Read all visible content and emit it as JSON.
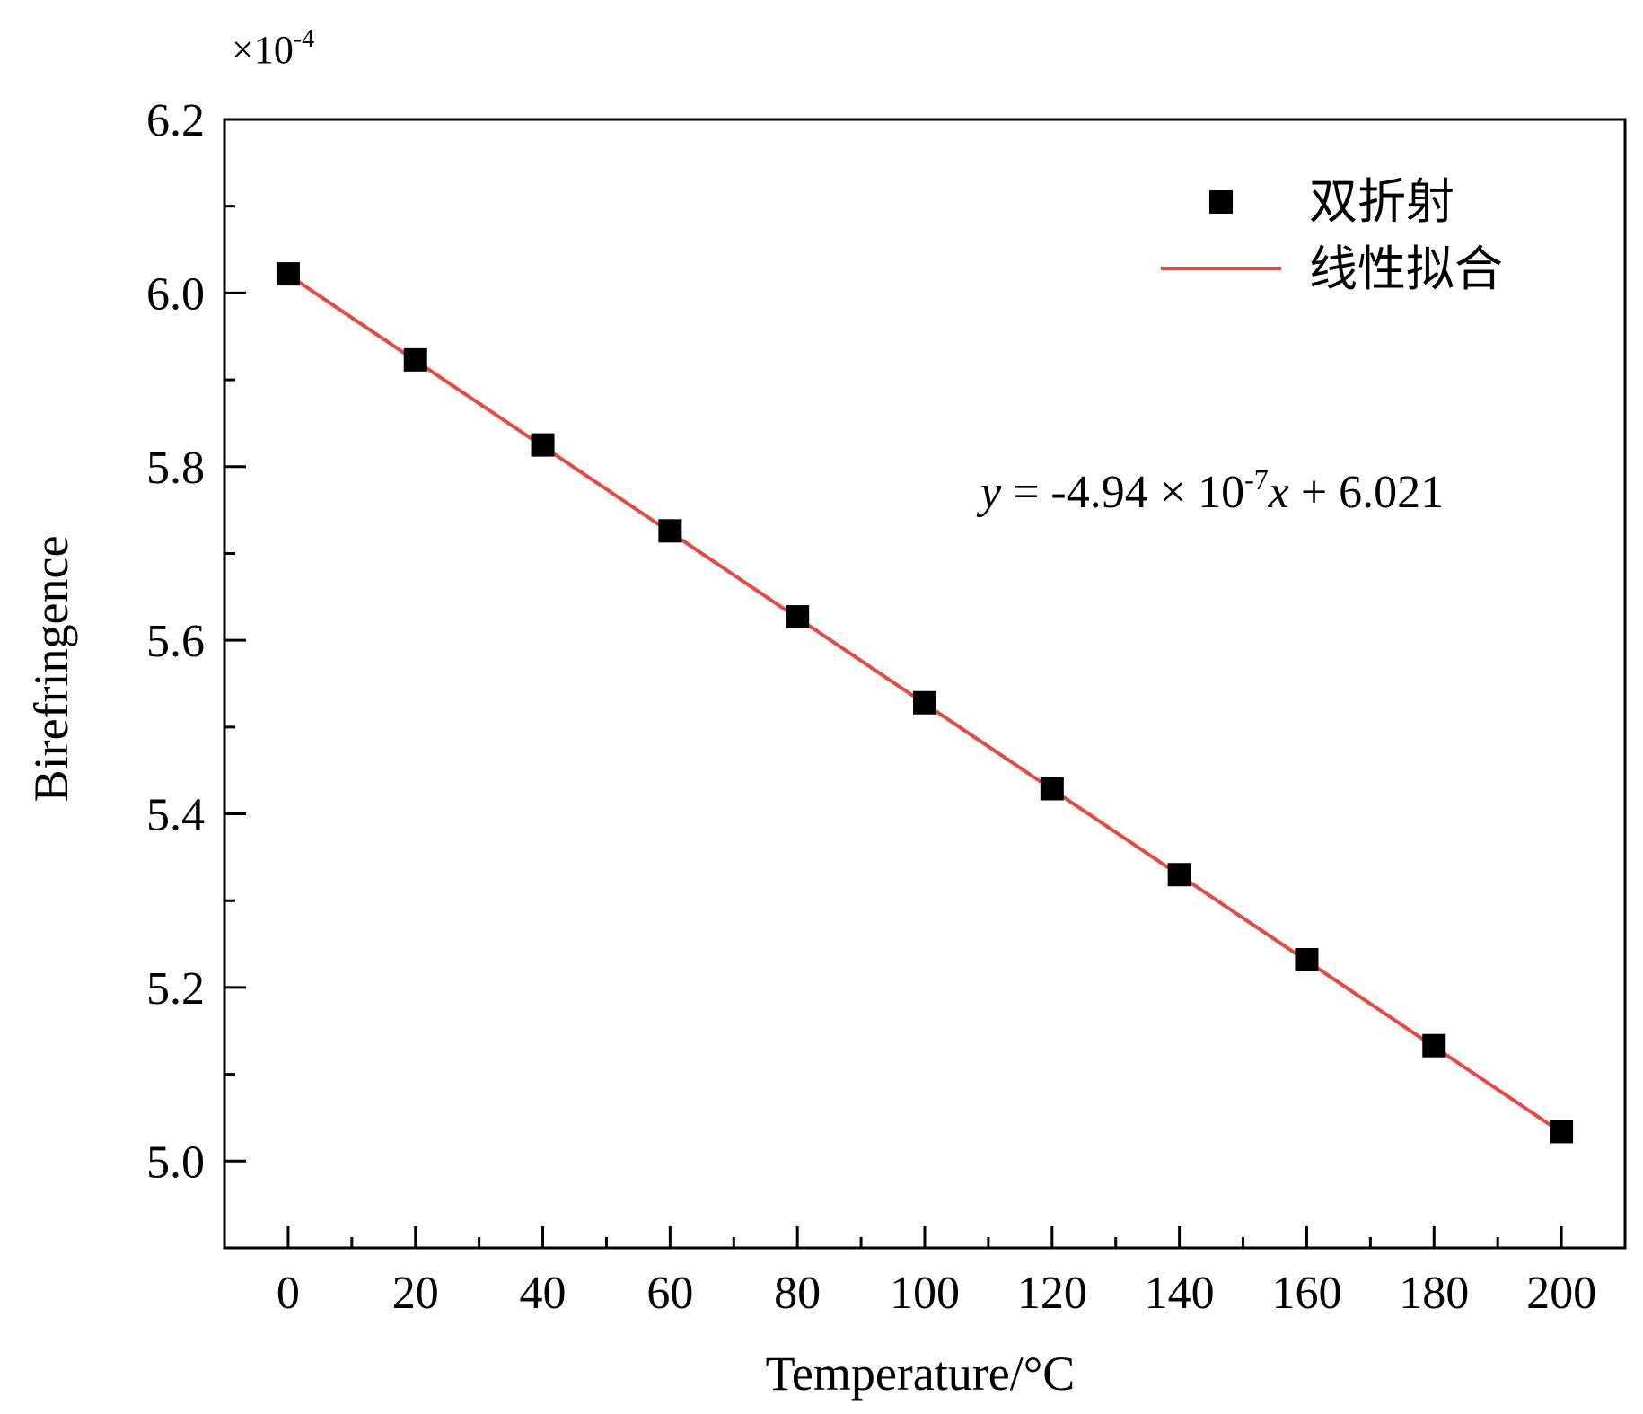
{
  "chart_data": {
    "type": "scatter",
    "xlabel": "Temperature/°C",
    "ylabel": "Birefringence",
    "y_multiplier": "×10",
    "y_multiplier_exp": "-4",
    "xlim": [
      -10,
      210
    ],
    "ylim": [
      4.9,
      6.2
    ],
    "x_ticks": [
      0,
      20,
      40,
      60,
      80,
      100,
      120,
      140,
      160,
      180,
      200
    ],
    "x_tick_labels": [
      "0",
      "20",
      "40",
      "60",
      "80",
      "100",
      "120",
      "140",
      "160",
      "180",
      "200"
    ],
    "y_ticks": [
      5.0,
      5.2,
      5.4,
      5.6,
      5.8,
      6.0,
      6.2
    ],
    "y_tick_labels": [
      "5.0",
      "5.2",
      "5.4",
      "5.6",
      "5.8",
      "6.0",
      "6.2"
    ],
    "grid": false,
    "legend_position": "top-right",
    "series": [
      {
        "name": "双折射",
        "kind": "scatter",
        "marker": "square",
        "color": "#000000",
        "x": [
          0,
          20,
          40,
          60,
          80,
          100,
          120,
          140,
          160,
          180,
          200
        ],
        "y": [
          6.022,
          5.923,
          5.825,
          5.726,
          5.627,
          5.528,
          5.429,
          5.33,
          5.232,
          5.133,
          5.034
        ]
      },
      {
        "name": "线性拟合",
        "kind": "line",
        "color": "#e8493f",
        "x": [
          0,
          200
        ],
        "y": [
          6.021,
          5.033
        ]
      }
    ],
    "annotation": {
      "var_y": "y",
      "part1": " = -4.94 × 10",
      "exp": "-7",
      "var_x": "x",
      "part2": " + 6.021"
    }
  }
}
